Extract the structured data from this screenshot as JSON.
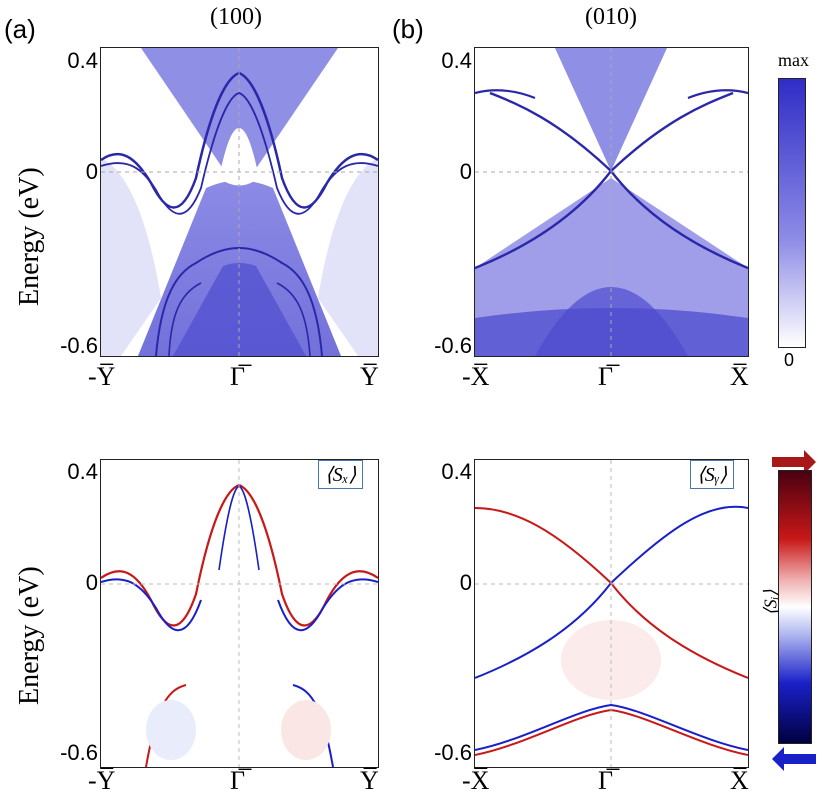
{
  "panels": {
    "a": {
      "letter": "(a)",
      "surface": "(100)"
    },
    "b": {
      "letter": "(b)",
      "surface": "(010)"
    }
  },
  "ylabel": "Energy  (eV)",
  "yticks": [
    "0.4",
    "0",
    "-0.6"
  ],
  "xticks_a": [
    "-Y̅",
    "Γ̅",
    "Y̅"
  ],
  "xticks_b": [
    "-X̅",
    "Γ̅",
    "X̅"
  ],
  "spin_badges": {
    "c": "⟨Sₓ⟩",
    "d": "⟨Sᵧ⟩"
  },
  "colorbar_top": {
    "max_label": "max",
    "min_label": "0"
  },
  "colorbar_bottom": {
    "label": "⟨Sᵢ⟩"
  },
  "colors": {
    "spectral": "#3a38c8",
    "spin_up": "#c81818",
    "spin_down": "#1a20c8"
  },
  "chart_data": [
    {
      "type": "heatmap",
      "title": "(100)",
      "panel": "a",
      "ylabel": "Energy (eV)",
      "ylim": [
        -0.6,
        0.4
      ],
      "xticks": [
        "-Y̅",
        "Γ̅",
        "Y̅"
      ],
      "colorscale": "white-to-blue",
      "range": [
        "0",
        "max"
      ]
    },
    {
      "type": "heatmap",
      "title": "(010)",
      "panel": "b",
      "ylabel": "Energy (eV)",
      "ylim": [
        -0.6,
        0.4
      ],
      "xticks": [
        "-X̅",
        "Γ̅",
        "X̅"
      ],
      "colorscale": "white-to-blue",
      "range": [
        "0",
        "max"
      ]
    },
    {
      "type": "heatmap",
      "title": "⟨Sₓ⟩",
      "panel": "c",
      "ylabel": "Energy (eV)",
      "ylim": [
        -0.6,
        0.4
      ],
      "xticks": [
        "-Y̅",
        "Γ̅",
        "Y̅"
      ],
      "colorscale": "blue-white-red"
    },
    {
      "type": "heatmap",
      "title": "⟨Sᵧ⟩",
      "panel": "d",
      "ylabel": "Energy (eV)",
      "ylim": [
        -0.6,
        0.4
      ],
      "xticks": [
        "-X̅",
        "Γ̅",
        "X̅"
      ],
      "colorscale": "blue-white-red"
    }
  ]
}
